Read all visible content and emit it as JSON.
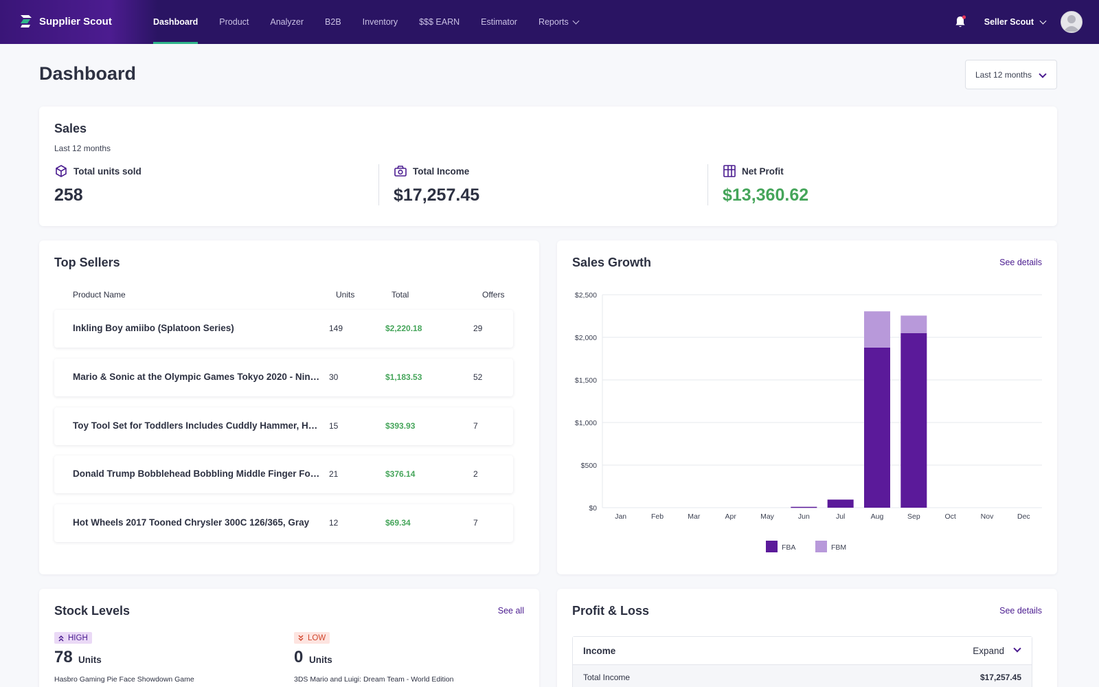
{
  "brand": {
    "name": "Supplier Scout",
    "colors": {
      "nav_bg": "#2a1463",
      "accent": "#4a1b8f",
      "active_underline": "#2fb58a",
      "positive": "#45a55a",
      "fba": "#5b1a9a",
      "fbm": "#b899da"
    }
  },
  "nav": {
    "links": [
      "Dashboard",
      "Product",
      "Analyzer",
      "B2B",
      "Inventory",
      "$$$ EARN",
      "Estimator",
      "Reports"
    ],
    "active": "Dashboard",
    "user_name": "Seller Scout"
  },
  "page": {
    "title": "Dashboard",
    "range": "Last 12 months"
  },
  "sales": {
    "title": "Sales",
    "subtitle": "Last 12 months",
    "units_label": "Total units sold",
    "units_value": "258",
    "income_label": "Total Income",
    "income_value": "$17,257.45",
    "profit_label": "Net Profit",
    "profit_value": "$13,360.62"
  },
  "top_sellers": {
    "title": "Top Sellers",
    "columns": [
      "Product Name",
      "Units",
      "Total",
      "Offers"
    ],
    "rows": [
      {
        "name": "Inkling Boy amiibo (Splatoon Series)",
        "units": "149",
        "total": "$2,220.18",
        "offers": "29"
      },
      {
        "name": "Mario & Sonic at the Olympic Games Tokyo 2020 - Nint...",
        "units": "30",
        "total": "$1,183.53",
        "offers": "52"
      },
      {
        "name": "Toy Tool Set for Toddlers Includes Cuddly Hammer, Ha...",
        "units": "15",
        "total": "$393.93",
        "offers": "7"
      },
      {
        "name": "Donald Trump Bobblehead Bobbling Middle Finger For...",
        "units": "21",
        "total": "$376.14",
        "offers": "2"
      },
      {
        "name": "Hot Wheels 2017 Tooned Chrysler 300C 126/365, Gray",
        "units": "12",
        "total": "$69.34",
        "offers": "7"
      }
    ]
  },
  "sales_growth": {
    "title": "Sales Growth",
    "link": "See details"
  },
  "chart_data": {
    "type": "bar",
    "stacked": true,
    "title": "Sales Growth",
    "categories": [
      "Jan",
      "Feb",
      "Mar",
      "Apr",
      "May",
      "Jun",
      "Jul",
      "Aug",
      "Sep",
      "Oct",
      "Nov",
      "Dec"
    ],
    "series": [
      {
        "name": "FBA",
        "color": "#5b1a9a",
        "values": [
          0,
          0,
          0,
          0,
          0,
          10,
          95,
          1880,
          2050,
          0,
          0,
          0
        ]
      },
      {
        "name": "FBM",
        "color": "#b899da",
        "values": [
          0,
          0,
          0,
          0,
          0,
          0,
          0,
          425,
          205,
          0,
          0,
          0
        ]
      }
    ],
    "ylim": [
      0,
      2500
    ],
    "yticks": [
      "$0",
      "$500",
      "$1,000",
      "$1,500",
      "$2,000",
      "$2,500"
    ],
    "ytick_values": [
      0,
      500,
      1000,
      1500,
      2000,
      2500
    ],
    "grid": true,
    "legend_position": "bottom"
  },
  "stock_levels": {
    "title": "Stock Levels",
    "link": "See all",
    "high": {
      "badge": "HIGH",
      "value": "78",
      "unit": "Units",
      "product": "Hasbro Gaming Pie Face Showdown Game"
    },
    "low": {
      "badge": "LOW",
      "value": "0",
      "unit": "Units",
      "product": "3DS Mario and Luigi: Dream Team - World Edition"
    }
  },
  "profit_loss": {
    "title": "Profit & Loss",
    "link": "See details",
    "section_label": "Income",
    "expand_label": "Expand",
    "row_label": "Total Income",
    "row_value": "$17,257.45"
  }
}
